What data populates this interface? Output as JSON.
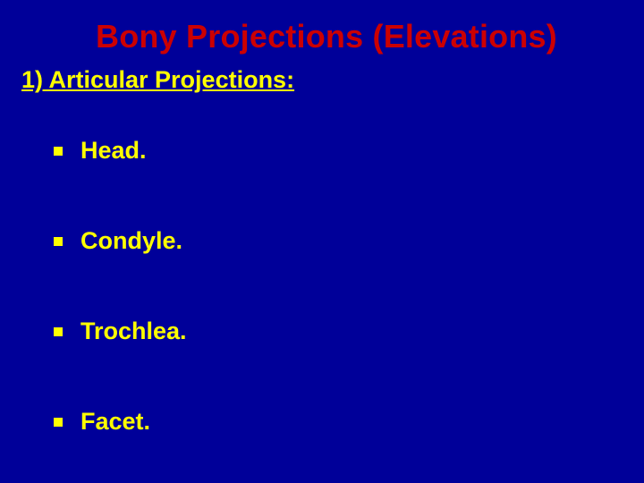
{
  "slide": {
    "background_color": "#000099",
    "title": {
      "text": "Bony Projections (Elevations)",
      "color": "#cc0000",
      "font_size_pt": 36,
      "font_weight": "bold"
    },
    "subtitle": {
      "text": "1) Articular Projections:",
      "color": "#ffff00",
      "font_size_pt": 27,
      "font_weight": "bold",
      "underline": true
    },
    "bullets": {
      "marker_type": "square",
      "marker_color": "#ffff00",
      "text_color": "#ffff00",
      "font_size_pt": 27,
      "font_weight": "bold",
      "items": [
        {
          "text": "Head."
        },
        {
          "text": "Condyle."
        },
        {
          "text": "Trochlea."
        },
        {
          "text": "Facet."
        }
      ]
    }
  }
}
